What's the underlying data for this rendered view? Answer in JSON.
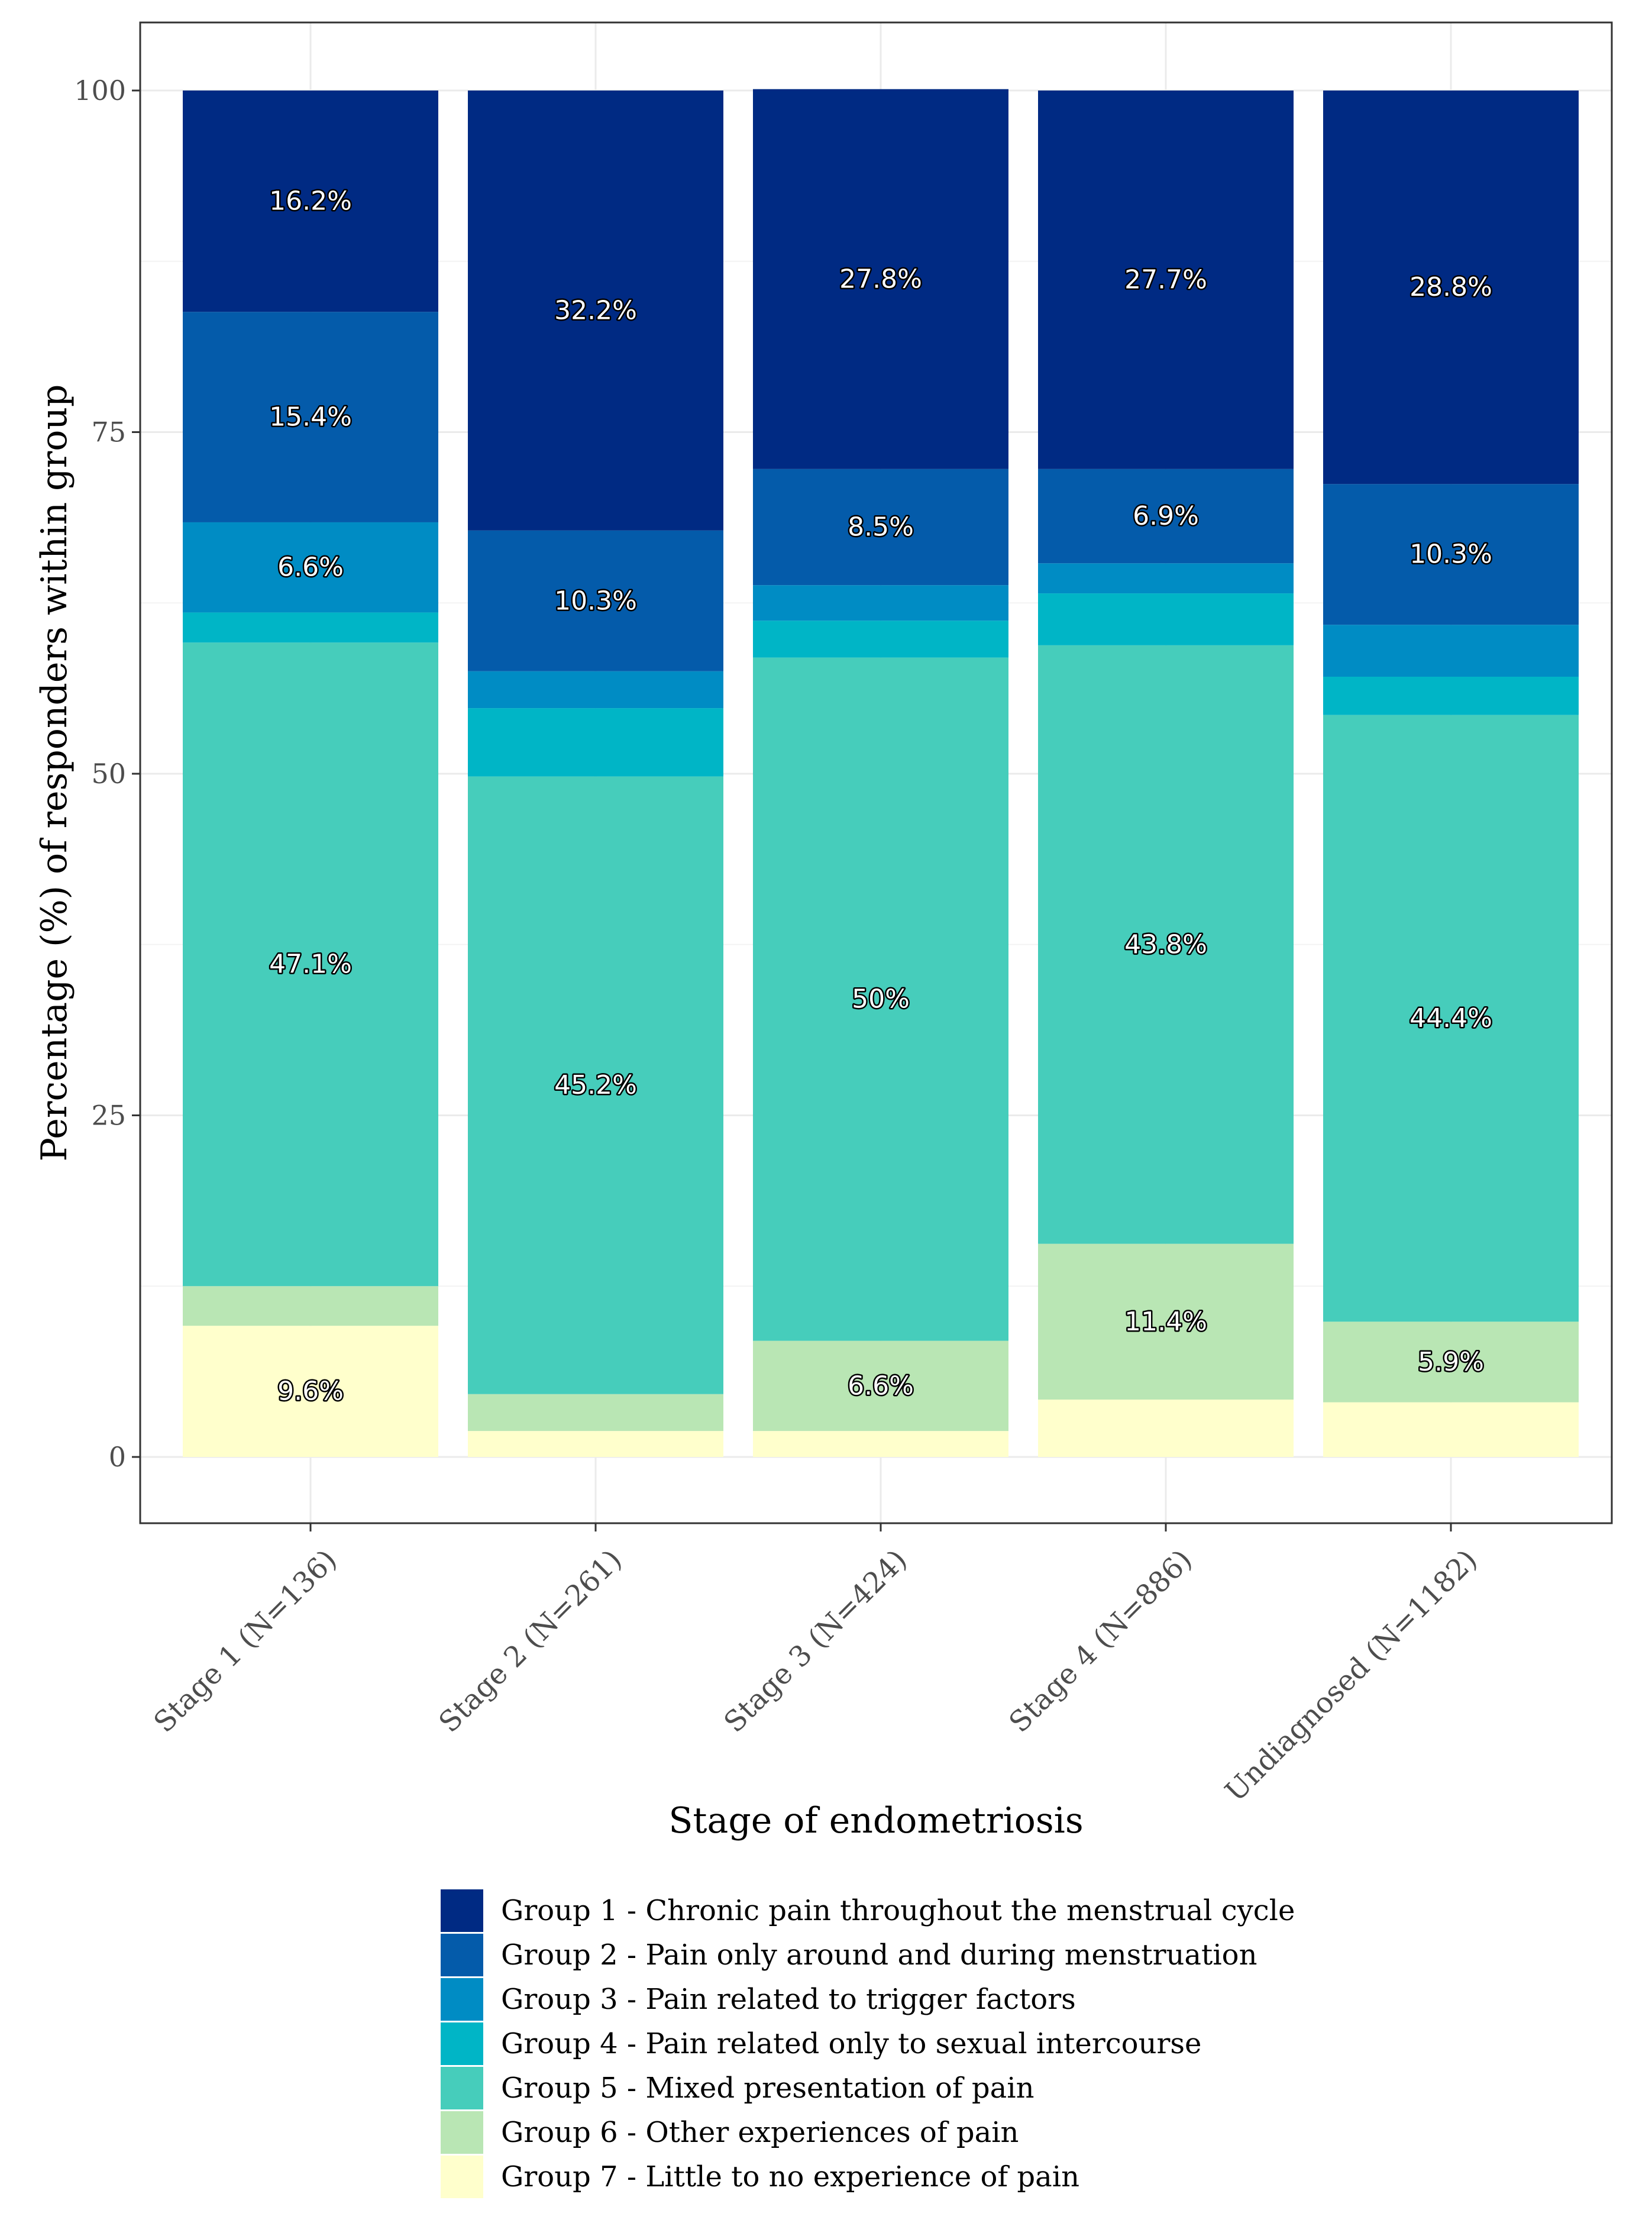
{
  "chart_data": {
    "type": "bar",
    "stacked": true,
    "title": "",
    "xlabel": "Stage of endometriosis",
    "ylabel": "Percentage (%) of responders within group",
    "ylim": [
      0,
      100
    ],
    "yticks": [
      0,
      25,
      50,
      75,
      100
    ],
    "grid": true,
    "legend_position": "bottom",
    "categories": [
      "Stage 1 (N=136)",
      "Stage 2 (N=261)",
      "Stage 3 (N=424)",
      "Stage 4 (N=886)",
      "Undiagnosed (N=1182)"
    ],
    "series": [
      {
        "name": "Group 7 - Little to no experience of pain",
        "color": "#FFFFCC",
        "values": [
          9.6,
          1.9,
          1.9,
          4.2,
          4.0
        ],
        "labels": [
          "9.6%",
          "",
          "",
          "",
          ""
        ]
      },
      {
        "name": "Group 6 - Other experiences of pain",
        "color": "#B9E6B4",
        "values": [
          2.9,
          2.7,
          6.6,
          11.4,
          5.9
        ],
        "labels": [
          "",
          "",
          "6.6%",
          "11.4%",
          "5.9%"
        ]
      },
      {
        "name": "Group 5 - Mixed presentation of pain",
        "color": "#46CDBB",
        "values": [
          47.1,
          45.2,
          50.0,
          43.8,
          44.4
        ],
        "labels": [
          "47.1%",
          "45.2%",
          "50%",
          "43.8%",
          "44.4%"
        ]
      },
      {
        "name": "Group 4 - Pain related only to sexual intercourse",
        "color": "#00B5C6",
        "values": [
          2.2,
          5.0,
          2.7,
          3.8,
          2.8
        ],
        "labels": [
          "",
          "",
          "",
          "",
          ""
        ]
      },
      {
        "name": "Group 3 - Pain related to trigger factors",
        "color": "#008CC4",
        "values": [
          6.6,
          2.7,
          2.6,
          2.2,
          3.8
        ],
        "labels": [
          "6.6%",
          "",
          "",
          "",
          ""
        ]
      },
      {
        "name": "Group 2 - Pain only around and during menstruation",
        "color": "#045BAA",
        "values": [
          15.4,
          10.3,
          8.5,
          6.9,
          10.3
        ],
        "labels": [
          "15.4%",
          "10.3%",
          "8.5%",
          "6.9%",
          "10.3%"
        ]
      },
      {
        "name": "Group 1 - Chronic pain throughout the menstrual cycle",
        "color": "#002A83",
        "values": [
          16.2,
          32.2,
          27.8,
          27.7,
          28.8
        ],
        "labels": [
          "16.2%",
          "32.2%",
          "27.8%",
          "27.7%",
          "28.8%"
        ]
      }
    ],
    "legend_order": [
      6,
      5,
      4,
      3,
      2,
      1,
      0
    ]
  }
}
